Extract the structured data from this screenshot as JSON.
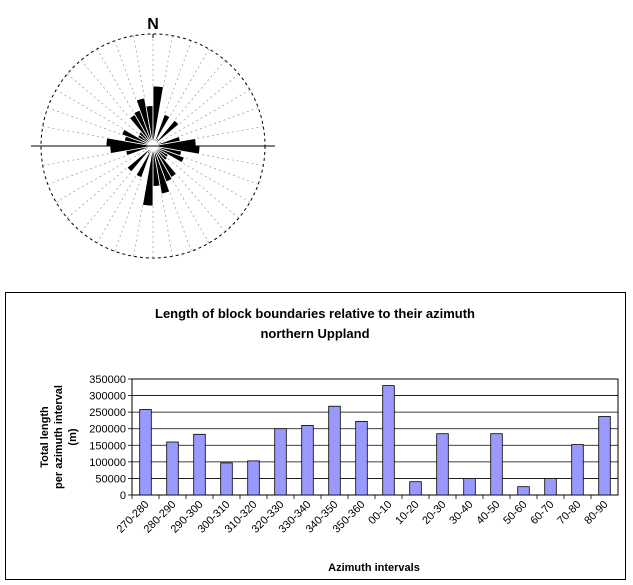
{
  "rose": {
    "north_label": "N",
    "bin_width_deg": 10,
    "petal_color": "#000000"
  },
  "chart_data": {
    "type": "bar",
    "title": "Length of block boundaries relative to their azimuth",
    "subtitle": "northern Uppland",
    "ylabel_line1": "Total length",
    "ylabel_line2": "per azimuth interval",
    "ylabel_line3": "(m)",
    "xlabel": "Azimuth intervals",
    "categories": [
      "270-280",
      "280-290",
      "290-300",
      "300-310",
      "310-320",
      "320-330",
      "330-340",
      "340-350",
      "350-360",
      "00-10",
      "10-20",
      "20-30",
      "30-40",
      "40-50",
      "50-60",
      "60-70",
      "70-80",
      "80-90"
    ],
    "values": [
      258000,
      160000,
      183000,
      97000,
      103000,
      200000,
      210000,
      268000,
      222000,
      330000,
      40000,
      185000,
      50000,
      185000,
      25000,
      50000,
      152000,
      237000
    ],
    "ylim": [
      0,
      350000
    ],
    "yticks": [
      "0",
      "50000",
      "100000",
      "150000",
      "200000",
      "250000",
      "300000",
      "350000"
    ],
    "bar_color": "#9999ff",
    "grid": true,
    "legend": "none"
  }
}
